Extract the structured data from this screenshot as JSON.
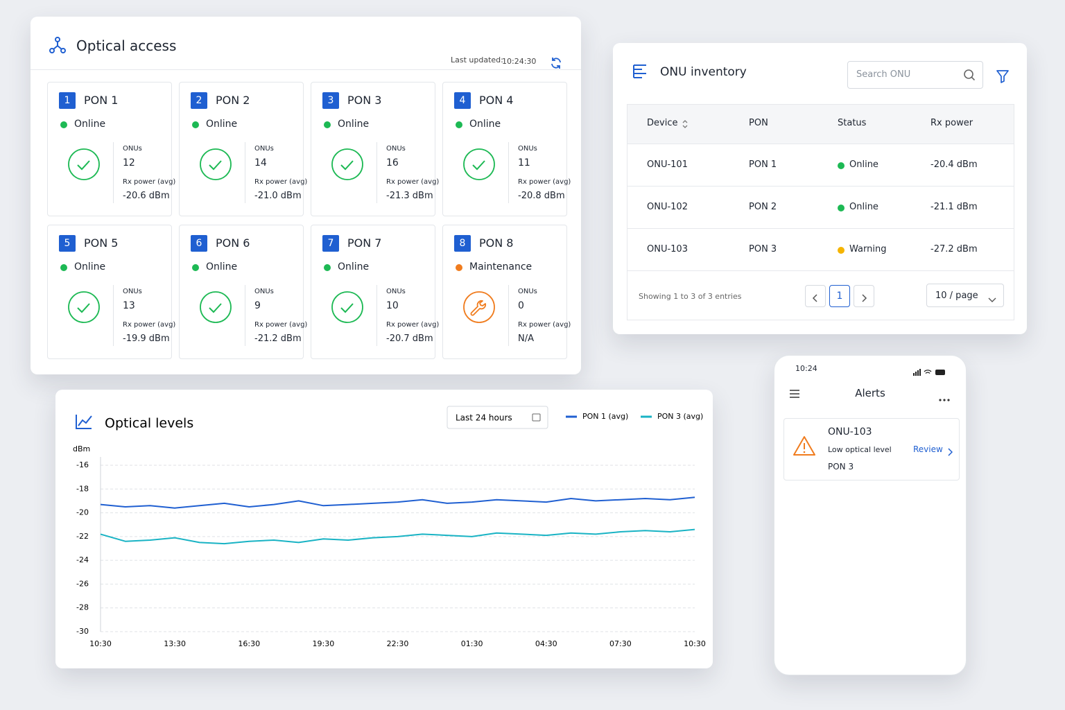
{
  "optical_access": {
    "title": "Optical access",
    "last_updated_label": "Last updated:",
    "last_updated": "10:24:30",
    "pons": [
      {
        "number": 1,
        "name": "PON 1",
        "status": "Online",
        "color": "#1db954",
        "icon": "check",
        "onus_label": "ONUs",
        "onus": 12,
        "rx_label": "Rx power (avg)",
        "rx": "-20.6 dBm"
      },
      {
        "number": 2,
        "name": "PON 2",
        "status": "Online",
        "color": "#1db954",
        "icon": "check",
        "onus_label": "ONUs",
        "onus": 14,
        "rx_label": "Rx power (avg)",
        "rx": "-21.0 dBm"
      },
      {
        "number": 3,
        "name": "PON 3",
        "status": "Online",
        "color": "#1db954",
        "icon": "check",
        "onus_label": "ONUs",
        "onus": 16,
        "rx_label": "Rx power (avg)",
        "rx": "-21.3 dBm"
      },
      {
        "number": 4,
        "name": "PON 4",
        "status": "Online",
        "color": "#1db954",
        "icon": "check",
        "onus_label": "ONUs",
        "onus": 11,
        "rx_label": "Rx power (avg)",
        "rx": "-20.8 dBm"
      },
      {
        "number": 5,
        "name": "PON 5",
        "status": "Online",
        "color": "#1db954",
        "icon": "check",
        "onus_label": "ONUs",
        "onus": 13,
        "rx_label": "Rx power (avg)",
        "rx": "-19.9 dBm"
      },
      {
        "number": 6,
        "name": "PON 6",
        "status": "Online",
        "color": "#1db954",
        "icon": "check",
        "onus_label": "ONUs",
        "onus": 9,
        "rx_label": "Rx power (avg)",
        "rx": "-21.2 dBm"
      },
      {
        "number": 7,
        "name": "PON 7",
        "status": "Online",
        "color": "#1db954",
        "icon": "check",
        "onus_label": "ONUs",
        "onus": 10,
        "rx_label": "Rx power (avg)",
        "rx": "-20.7 dBm"
      },
      {
        "number": 8,
        "name": "PON 8",
        "status": "Maintenance",
        "color": "#f07c1e",
        "icon": "wrench",
        "onus_label": "ONUs",
        "onus": 0,
        "rx_label": "Rx power (avg)",
        "rx": "N/A"
      }
    ]
  },
  "onu_inventory": {
    "title": "ONU inventory",
    "search_placeholder": "Search ONU",
    "columns": [
      "Device",
      "PON",
      "Status",
      "Rx power"
    ],
    "rows": [
      {
        "device": "ONU-101",
        "pon": "PON 1",
        "status": "Online",
        "color": "#1db954",
        "rx": "-20.4 dBm"
      },
      {
        "device": "ONU-102",
        "pon": "PON 2",
        "status": "Online",
        "color": "#1db954",
        "rx": "-21.1 dBm"
      },
      {
        "device": "ONU-103",
        "pon": "PON 3",
        "status": "Warning",
        "color": "#f5b400",
        "rx": "-27.2 dBm"
      }
    ],
    "footer": "Showing 1 to 3 of 3 entries",
    "page": 1,
    "page_size": "10 / page"
  },
  "chart_data": {
    "type": "line",
    "title": "Optical levels",
    "y_label": "dBm",
    "range_label": "Last 24 hours",
    "categories": [
      "10:30",
      null,
      null,
      "13:30",
      null,
      null,
      "16:30",
      null,
      null,
      "19:30",
      null,
      null,
      "22:30",
      null,
      null,
      "01:30",
      null,
      null,
      "04:30",
      null,
      null,
      "07:30",
      null,
      null,
      "10:30"
    ],
    "series": [
      {
        "name": "PON 1 (avg)",
        "color": "#1f5fd1",
        "values": [
          -19.3,
          -19.5,
          -19.4,
          -19.6,
          -19.4,
          -19.2,
          -19.5,
          -19.3,
          -19.0,
          -19.4,
          -19.3,
          -19.2,
          -19.1,
          -18.9,
          -19.2,
          -19.1,
          -18.9,
          -19.0,
          -19.1,
          -18.8,
          -19.0,
          -18.9,
          -18.8,
          -18.9,
          -18.7
        ]
      },
      {
        "name": "PON 3 (avg)",
        "color": "#19b3c4",
        "values": [
          -21.8,
          -22.4,
          -22.3,
          -22.1,
          -22.5,
          -22.6,
          -22.4,
          -22.3,
          -22.5,
          -22.2,
          -22.3,
          -22.1,
          -22.0,
          -21.8,
          -21.9,
          -22.0,
          -21.7,
          -21.8,
          -21.9,
          -21.7,
          -21.8,
          -21.6,
          -21.5,
          -21.6,
          -21.4
        ]
      }
    ],
    "ylim": [
      -30,
      -16
    ],
    "yticks": [
      -16,
      -18,
      -20,
      -22,
      -24,
      -26,
      -28,
      -30
    ],
    "grid": true
  },
  "alerts": {
    "time": "10:24",
    "title": "Alerts",
    "items": [
      {
        "device": "ONU-103",
        "message": "Low optical level",
        "pon": "PON 3",
        "action": "Review"
      }
    ]
  }
}
